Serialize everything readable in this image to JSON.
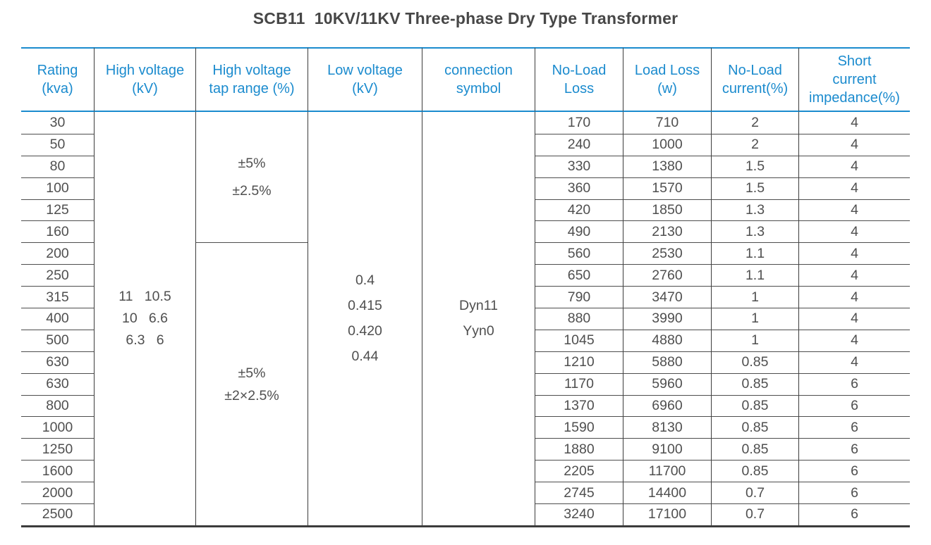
{
  "title": "SCB11  10KV/11KV Three-phase Dry Type Transformer",
  "colors": {
    "accent_blue": "#1b8bce",
    "body_text_gray": "#4f4f4f",
    "grid_line_dark": "#3c3c3c",
    "row_line_gray": "#4d4d4d",
    "title_gray": "#474747",
    "background": "#ffffff"
  },
  "table": {
    "columns": [
      {
        "id": "rating",
        "label": "Rating\n(kva)"
      },
      {
        "id": "high_voltage",
        "label": "High voltage\n(kV)"
      },
      {
        "id": "tap_range",
        "label": "High voltage\ntap range (%)"
      },
      {
        "id": "low_voltage",
        "label": "Low voltage\n(kV)"
      },
      {
        "id": "connection_symbol",
        "label": "connection\nsymbol"
      },
      {
        "id": "no_load_loss",
        "label": "No-Load\nLoss"
      },
      {
        "id": "load_loss",
        "label": "Load Loss\n(w)"
      },
      {
        "id": "no_load_current",
        "label": "No-Load\ncurrent(%)"
      },
      {
        "id": "short_current_impedance",
        "label": "Short\ncurrent\nimpedance(%)"
      }
    ],
    "merged_cells": {
      "high_voltage": "11   10.5\n10   6.6\n6.3   6",
      "tap_range_top": "±5%\n±2.5%",
      "tap_range_bottom": "±5%\n±2×2.5%",
      "low_voltage": "0.4\n0.415\n0.420\n0.44",
      "connection_symbol": "Dyn11\nYyn0"
    },
    "rows": [
      {
        "rating": "30",
        "no_load_loss": "170",
        "load_loss": "710",
        "no_load_current": "2",
        "impedance": "4"
      },
      {
        "rating": "50",
        "no_load_loss": "240",
        "load_loss": "1000",
        "no_load_current": "2",
        "impedance": "4"
      },
      {
        "rating": "80",
        "no_load_loss": "330",
        "load_loss": "1380",
        "no_load_current": "1.5",
        "impedance": "4"
      },
      {
        "rating": "100",
        "no_load_loss": "360",
        "load_loss": "1570",
        "no_load_current": "1.5",
        "impedance": "4"
      },
      {
        "rating": "125",
        "no_load_loss": "420",
        "load_loss": "1850",
        "no_load_current": "1.3",
        "impedance": "4"
      },
      {
        "rating": "160",
        "no_load_loss": "490",
        "load_loss": "2130",
        "no_load_current": "1.3",
        "impedance": "4"
      },
      {
        "rating": "200",
        "no_load_loss": "560",
        "load_loss": "2530",
        "no_load_current": "1.1",
        "impedance": "4"
      },
      {
        "rating": "250",
        "no_load_loss": "650",
        "load_loss": "2760",
        "no_load_current": "1.1",
        "impedance": "4"
      },
      {
        "rating": "315",
        "no_load_loss": "790",
        "load_loss": "3470",
        "no_load_current": "1",
        "impedance": "4"
      },
      {
        "rating": "400",
        "no_load_loss": "880",
        "load_loss": "3990",
        "no_load_current": "1",
        "impedance": "4"
      },
      {
        "rating": "500",
        "no_load_loss": "1045",
        "load_loss": "4880",
        "no_load_current": "1",
        "impedance": "4"
      },
      {
        "rating": "630",
        "no_load_loss": "1210",
        "load_loss": "5880",
        "no_load_current": "0.85",
        "impedance": "4"
      },
      {
        "rating": "630",
        "no_load_loss": "1170",
        "load_loss": "5960",
        "no_load_current": "0.85",
        "impedance": "6"
      },
      {
        "rating": "800",
        "no_load_loss": "1370",
        "load_loss": "6960",
        "no_load_current": "0.85",
        "impedance": "6"
      },
      {
        "rating": "1000",
        "no_load_loss": "1590",
        "load_loss": "8130",
        "no_load_current": "0.85",
        "impedance": "6"
      },
      {
        "rating": "1250",
        "no_load_loss": "1880",
        "load_loss": "9100",
        "no_load_current": "0.85",
        "impedance": "6"
      },
      {
        "rating": "1600",
        "no_load_loss": "2205",
        "load_loss": "11700",
        "no_load_current": "0.85",
        "impedance": "6"
      },
      {
        "rating": "2000",
        "no_load_loss": "2745",
        "load_loss": "14400",
        "no_load_current": "0.7",
        "impedance": "6"
      },
      {
        "rating": "2500",
        "no_load_loss": "3240",
        "load_loss": "17100",
        "no_load_current": "0.7",
        "impedance": "6"
      }
    ]
  }
}
